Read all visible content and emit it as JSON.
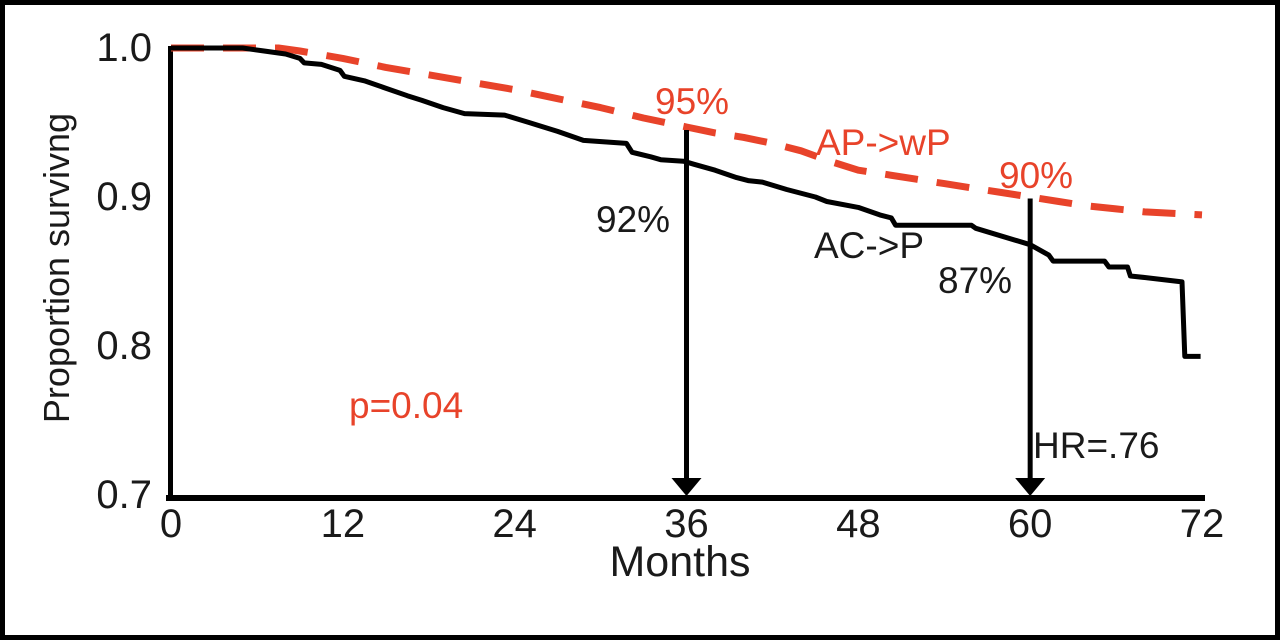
{
  "figure": {
    "background": "#ffffff",
    "border_color": "#000000"
  },
  "colors": {
    "accent_red": "#e8432a",
    "curve_black": "#000000",
    "text_black": "#1a1a1a"
  },
  "chart_data": {
    "type": "line",
    "subtype": "kaplan-meier-survival",
    "title": "",
    "xlabel": "Months",
    "ylabel": "Proportion survivng",
    "xlim": [
      0,
      72
    ],
    "ylim": [
      0.7,
      1.0
    ],
    "x_ticks": [
      "0",
      "12",
      "24",
      "36",
      "48",
      "60",
      "72"
    ],
    "y_ticks": [
      "1.0",
      "0.9",
      "0.8",
      "0.7"
    ],
    "grid": false,
    "legend_position": "inline-curve-labels",
    "series": [
      {
        "name": "AP->wP",
        "color": "#e8432a",
        "line_style": "dashed",
        "points": [
          [
            0,
            1.0
          ],
          [
            7.5,
            1.0
          ],
          [
            9,
            0.998
          ],
          [
            12,
            0.993
          ],
          [
            15,
            0.987
          ],
          [
            18,
            0.982
          ],
          [
            21,
            0.977
          ],
          [
            24,
            0.972
          ],
          [
            27,
            0.966
          ],
          [
            30,
            0.96
          ],
          [
            33,
            0.953
          ],
          [
            36,
            0.947
          ],
          [
            38,
            0.943
          ],
          [
            40,
            0.94
          ],
          [
            42,
            0.936
          ],
          [
            44,
            0.931
          ],
          [
            46,
            0.924
          ],
          [
            48,
            0.918
          ],
          [
            50,
            0.915
          ],
          [
            52,
            0.912
          ],
          [
            54,
            0.909
          ],
          [
            56,
            0.906
          ],
          [
            58,
            0.903
          ],
          [
            60,
            0.9
          ],
          [
            62,
            0.897
          ],
          [
            64,
            0.894
          ],
          [
            66,
            0.892
          ],
          [
            68,
            0.89
          ],
          [
            70,
            0.889
          ],
          [
            72,
            0.888
          ]
        ]
      },
      {
        "name": "AC->P",
        "color": "#000000",
        "line_style": "solid",
        "points": [
          [
            0,
            1.0
          ],
          [
            5,
            1.0
          ],
          [
            6.5,
            0.998
          ],
          [
            8,
            0.996
          ],
          [
            9,
            0.993
          ],
          [
            9.3,
            0.99
          ],
          [
            10.5,
            0.989
          ],
          [
            11.8,
            0.985
          ],
          [
            12.1,
            0.981
          ],
          [
            13.5,
            0.978
          ],
          [
            15,
            0.973
          ],
          [
            16.5,
            0.968
          ],
          [
            17.5,
            0.965
          ],
          [
            19,
            0.96
          ],
          [
            20.5,
            0.956
          ],
          [
            23.3,
            0.955
          ],
          [
            25,
            0.95
          ],
          [
            27,
            0.944
          ],
          [
            28.8,
            0.938
          ],
          [
            31.8,
            0.936
          ],
          [
            32.2,
            0.93
          ],
          [
            33.5,
            0.927
          ],
          [
            34.2,
            0.925
          ],
          [
            35.8,
            0.924
          ],
          [
            36.5,
            0.922
          ],
          [
            38,
            0.918
          ],
          [
            39.5,
            0.913
          ],
          [
            40.3,
            0.911
          ],
          [
            41.3,
            0.91
          ],
          [
            43,
            0.905
          ],
          [
            45,
            0.9
          ],
          [
            45.8,
            0.897
          ],
          [
            48,
            0.893
          ],
          [
            49.5,
            0.888
          ],
          [
            50.3,
            0.886
          ],
          [
            50.6,
            0.881
          ],
          [
            55.9,
            0.881
          ],
          [
            56.2,
            0.879
          ],
          [
            60,
            0.868
          ],
          [
            61.3,
            0.861
          ],
          [
            61.6,
            0.857
          ],
          [
            65.2,
            0.857
          ],
          [
            65.5,
            0.853
          ],
          [
            66.8,
            0.853
          ],
          [
            67.0,
            0.847
          ],
          [
            68,
            0.846
          ],
          [
            70.6,
            0.843
          ],
          [
            70.8,
            0.793
          ],
          [
            71.9,
            0.793
          ]
        ]
      }
    ],
    "marker_arrows": [
      {
        "month": 36,
        "from_value": 0.945
      },
      {
        "month": 60,
        "from_value": 0.899
      }
    ],
    "annotations": [
      {
        "id": "ap-36-label",
        "text": "95%",
        "color": "#e8432a"
      },
      {
        "id": "ac-36-label",
        "text": "92%",
        "color": "#1a1a1a"
      },
      {
        "id": "ap-series-label",
        "text": "AP->wP",
        "color": "#e8432a"
      },
      {
        "id": "ap-60-label",
        "text": "90%",
        "color": "#e8432a"
      },
      {
        "id": "ac-series-label",
        "text": "AC->P",
        "color": "#1a1a1a"
      },
      {
        "id": "ac-60-label",
        "text": "87%",
        "color": "#1a1a1a"
      },
      {
        "id": "p-value-label",
        "text": "p=0.04",
        "color": "#e8432a"
      },
      {
        "id": "hazard-ratio-label",
        "text": "HR=.76",
        "color": "#1a1a1a"
      }
    ],
    "key_readings": {
      "ap_wp_36_months": "95%",
      "ac_p_36_months": "92%",
      "ap_wp_60_months": "90%",
      "ac_p_60_months": "87%",
      "p_value": "p=0.04",
      "hazard_ratio": "HR=.76"
    }
  }
}
